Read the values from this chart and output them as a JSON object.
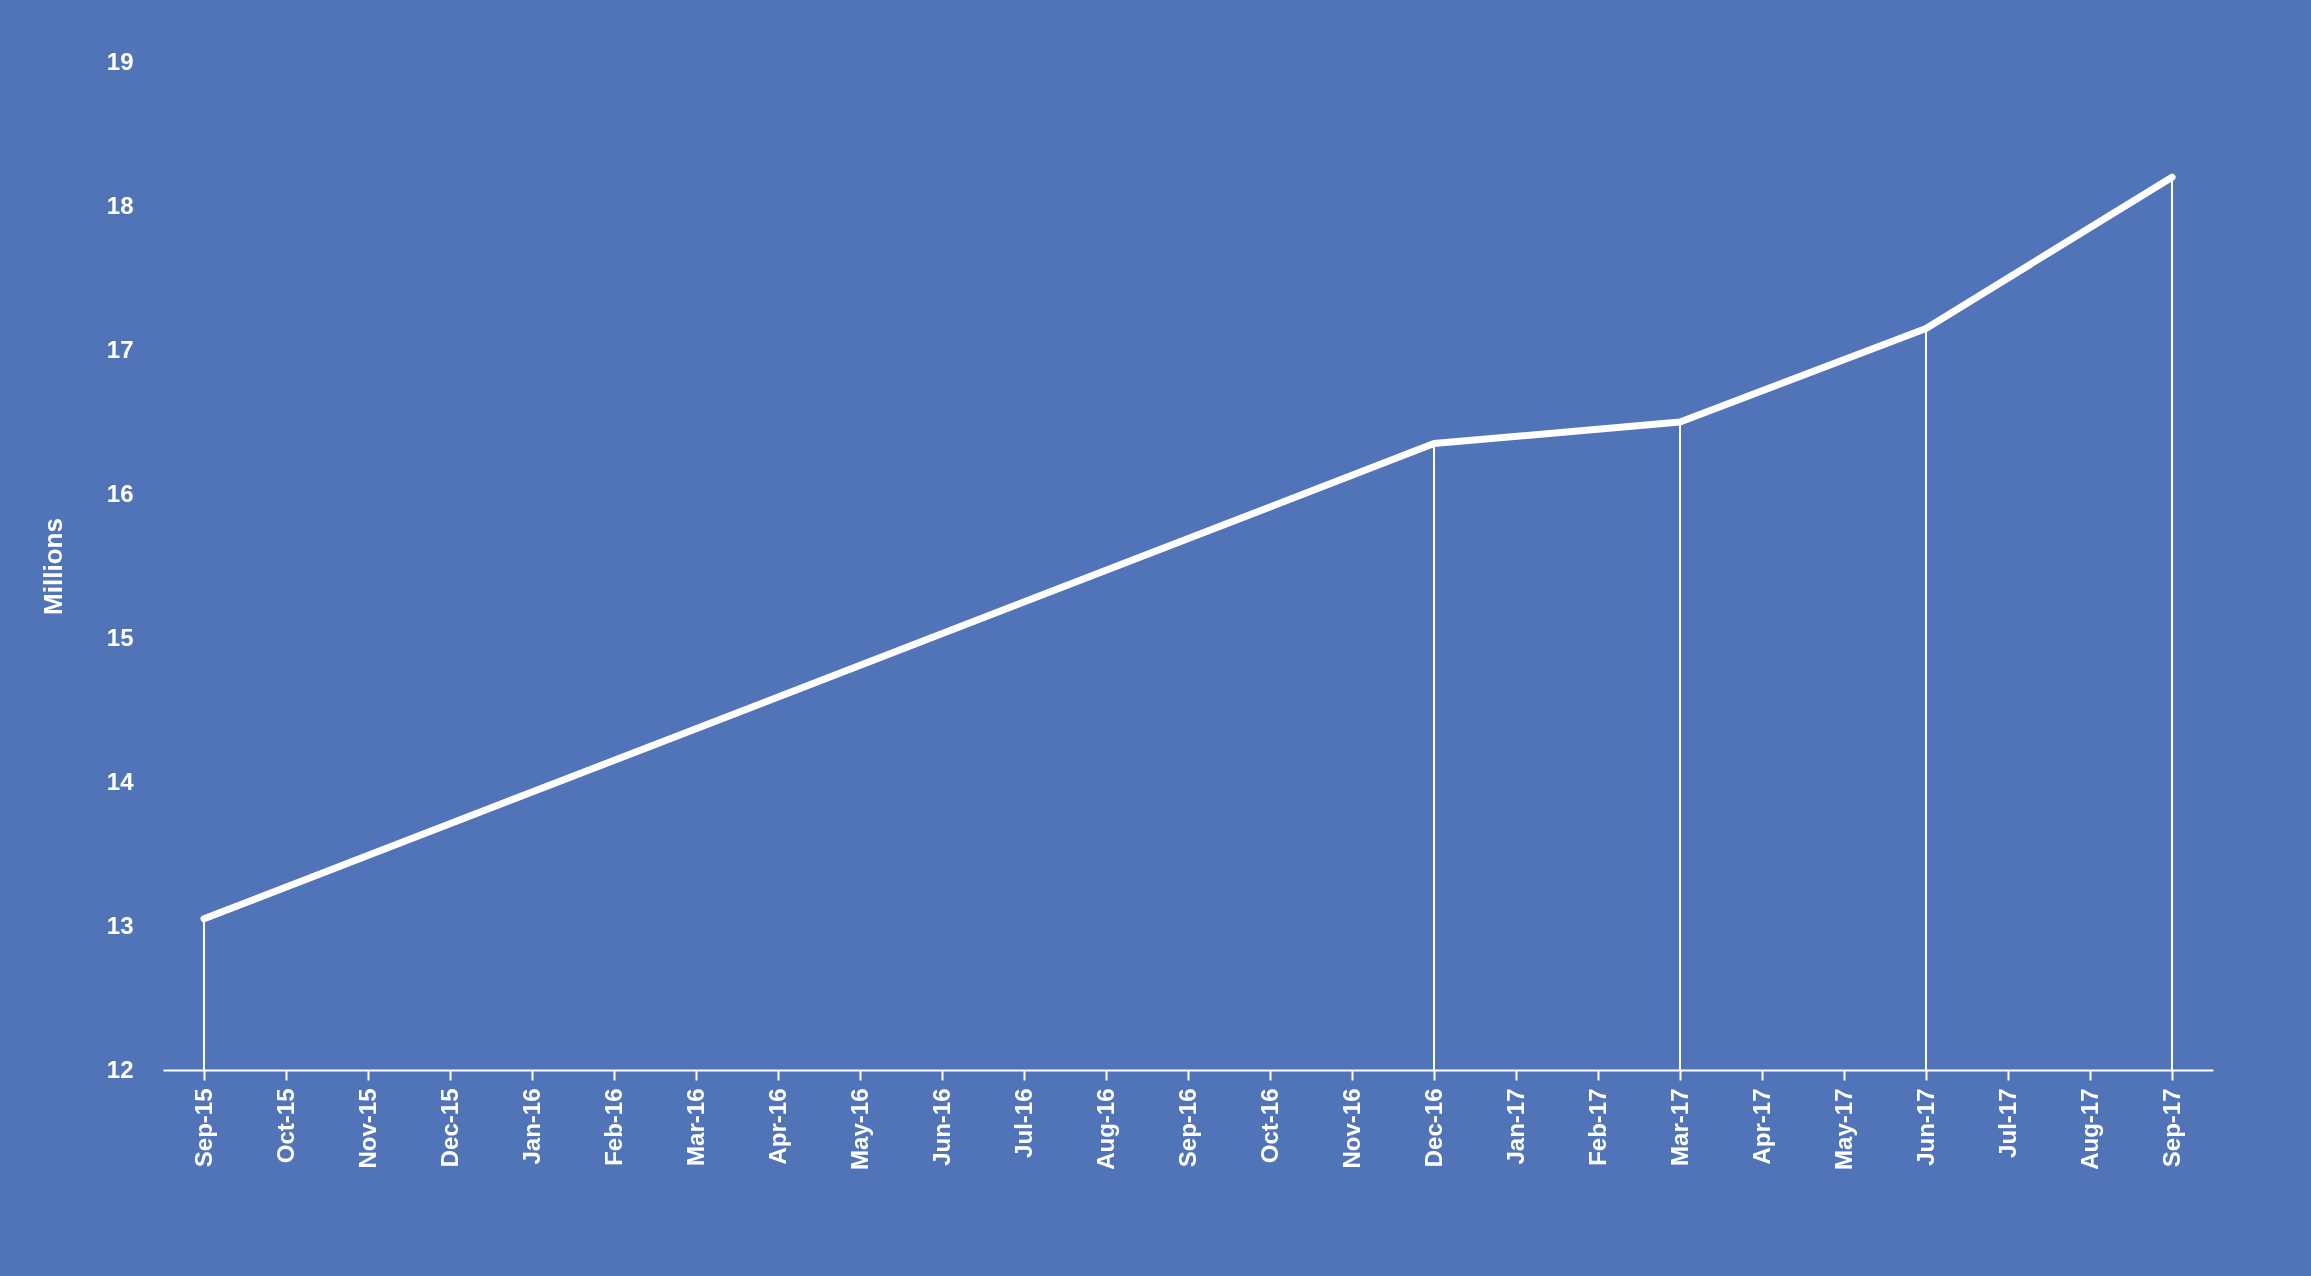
{
  "chart_data": {
    "type": "line",
    "ylabel": "Millions",
    "categories": [
      "Sep-15",
      "Oct-15",
      "Nov-15",
      "Dec-15",
      "Jan-16",
      "Feb-16",
      "Mar-16",
      "Apr-16",
      "May-16",
      "Jun-16",
      "Jul-16",
      "Aug-16",
      "Sep-16",
      "Oct-16",
      "Nov-16",
      "Dec-16",
      "Jan-17",
      "Feb-17",
      "Mar-17",
      "Apr-17",
      "May-17",
      "Jun-17",
      "Jul-17",
      "Aug-17",
      "Sep-17"
    ],
    "series": [
      {
        "color": "#ffffff",
        "values": [
          13.05,
          null,
          null,
          null,
          null,
          null,
          null,
          null,
          null,
          null,
          null,
          null,
          null,
          null,
          null,
          16.35,
          null,
          null,
          16.5,
          null,
          null,
          17.15,
          null,
          null,
          18.2
        ]
      },
      {
        "type": "bar",
        "color": "#ffffff",
        "values": [
          13.05,
          null,
          null,
          null,
          null,
          null,
          null,
          null,
          null,
          null,
          null,
          null,
          null,
          null,
          null,
          16.35,
          null,
          null,
          16.5,
          null,
          null,
          17.15,
          null,
          null,
          18.2
        ]
      }
    ],
    "ylim": [
      12,
      19
    ],
    "yticks": [
      12,
      13,
      14,
      15,
      16,
      17,
      18,
      19
    ],
    "grid": false,
    "marker": "none",
    "line_style": "solid"
  }
}
